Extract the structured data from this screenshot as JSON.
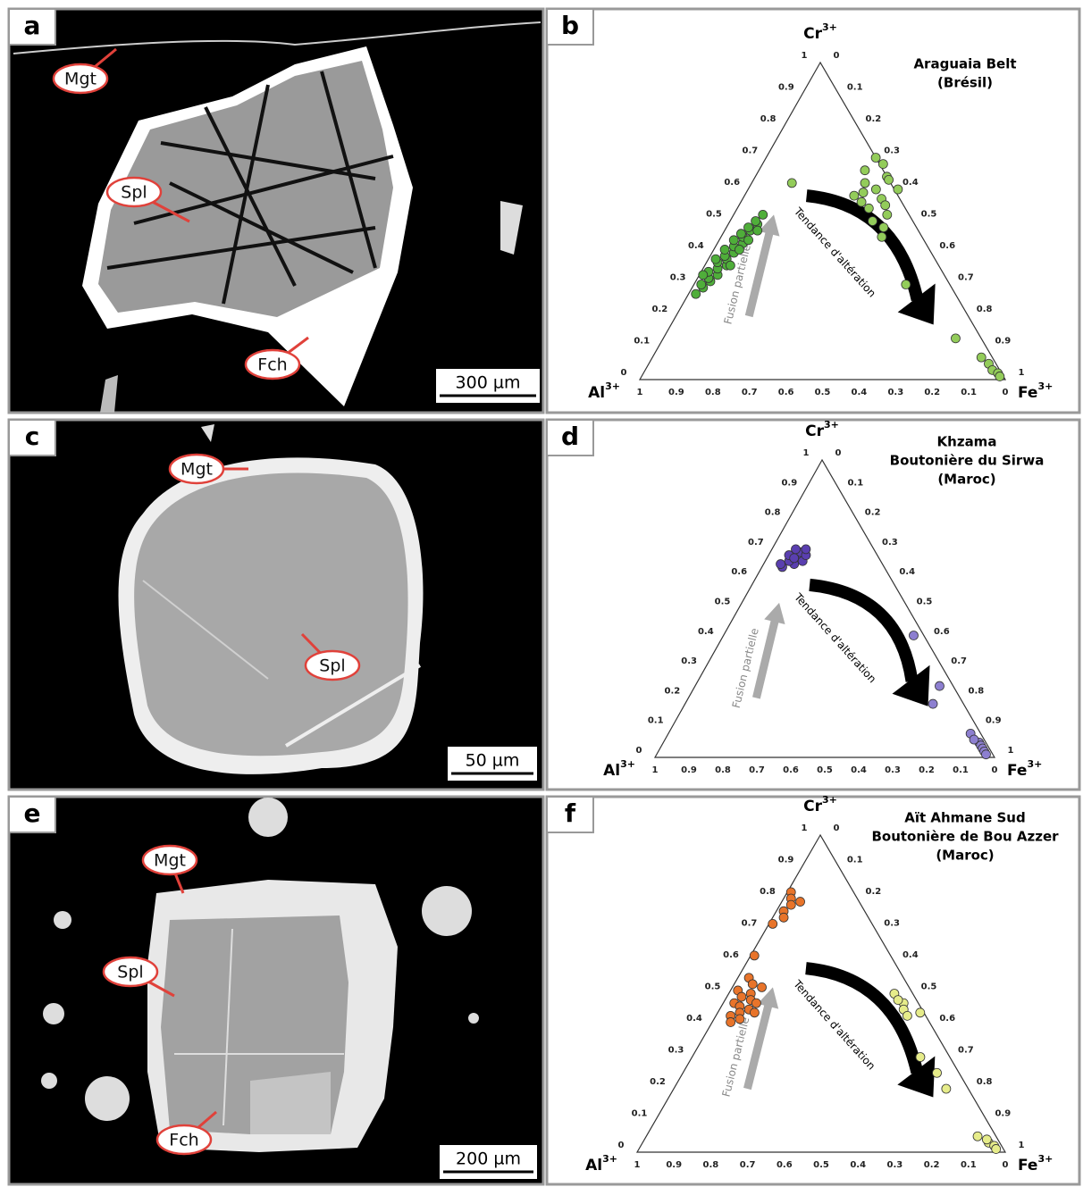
{
  "panels": [
    "a",
    "b",
    "c",
    "d",
    "e",
    "f"
  ],
  "images": [
    {
      "callouts": [
        "Mgt",
        "Spl",
        "Fch"
      ],
      "scale": "300 µm"
    },
    {
      "callouts": [
        "Mgt",
        "Spl"
      ],
      "scale": "50 µm"
    },
    {
      "callouts": [
        "Mgt",
        "Spl",
        "Fch"
      ],
      "scale": "200 µm"
    }
  ],
  "chart_data": [
    {
      "type": "ternary",
      "title_lines": [
        "Araguaia Belt",
        "(Brésil)"
      ],
      "apex": {
        "top": {
          "text": "Cr",
          "sup": "3+"
        },
        "left": {
          "text": "Al",
          "sup": "3+"
        },
        "right": {
          "text": "Fe",
          "sup": "3+"
        }
      },
      "ticks": [
        0,
        0.1,
        0.2,
        0.3,
        0.4,
        0.5,
        0.6,
        0.7,
        0.8,
        0.9,
        1
      ],
      "annotations": [
        "Fusion partielle",
        "Tendance d'altération"
      ],
      "series": [
        {
          "color": "#4fae3a",
          "cr": [
            0.27,
            0.29,
            0.3,
            0.31,
            0.32,
            0.33,
            0.34,
            0.35,
            0.36,
            0.37,
            0.38,
            0.39,
            0.4,
            0.41,
            0.42,
            0.43,
            0.44,
            0.45,
            0.46,
            0.47,
            0.48,
            0.49,
            0.5,
            0.52,
            0.33,
            0.36,
            0.38,
            0.41,
            0.44,
            0.47
          ],
          "fe": [
            0.02,
            0.03,
            0.02,
            0.04,
            0.03,
            0.05,
            0.02,
            0.04,
            0.06,
            0.03,
            0.05,
            0.04,
            0.06,
            0.03,
            0.05,
            0.07,
            0.04,
            0.06,
            0.05,
            0.07,
            0.06,
            0.08,
            0.07,
            0.08,
            0.01,
            0.07,
            0.02,
            0.07,
            0.08,
            0.09
          ]
        },
        {
          "color": "#93cc5a",
          "cr": [
            0.62,
            0.7,
            0.68,
            0.66,
            0.64,
            0.62,
            0.6,
            0.58,
            0.57,
            0.56,
            0.55,
            0.54,
            0.6,
            0.63,
            0.52,
            0.5,
            0.59,
            0.48,
            0.45,
            0.3,
            0.13,
            0.07,
            0.05,
            0.03,
            0.02,
            0.01
          ],
          "fe": [
            0.11,
            0.3,
            0.33,
            0.29,
            0.36,
            0.31,
            0.35,
            0.3,
            0.38,
            0.33,
            0.4,
            0.36,
            0.41,
            0.37,
            0.42,
            0.39,
            0.32,
            0.43,
            0.44,
            0.58,
            0.8,
            0.9,
            0.93,
            0.95,
            0.97,
            0.98
          ]
        }
      ]
    },
    {
      "type": "ternary",
      "title_lines": [
        "Khzama",
        "Boutonière du Sirwa",
        "(Maroc)"
      ],
      "apex": {
        "top": {
          "text": "Cr",
          "sup": "3+"
        },
        "left": {
          "text": "Al",
          "sup": "3+"
        },
        "right": {
          "text": "Fe",
          "sup": "3+"
        }
      },
      "ticks": [
        0,
        0.1,
        0.2,
        0.3,
        0.4,
        0.5,
        0.6,
        0.7,
        0.8,
        0.9,
        1
      ],
      "annotations": [
        "Fusion partielle",
        "Tendance d'altération"
      ],
      "series": [
        {
          "color": "#5a3fb0",
          "cr": [
            0.64,
            0.65,
            0.66,
            0.67,
            0.68,
            0.69,
            0.7,
            0.66,
            0.68,
            0.7,
            0.65,
            0.67
          ],
          "fe": [
            0.06,
            0.09,
            0.07,
            0.1,
            0.06,
            0.09,
            0.07,
            0.11,
            0.11,
            0.1,
            0.05,
            0.08
          ]
        },
        {
          "color": "#8d7fd0",
          "cr": [
            0.41,
            0.18,
            0.24,
            0.08,
            0.05,
            0.04,
            0.03,
            0.02,
            0.06,
            0.01
          ],
          "fe": [
            0.56,
            0.73,
            0.72,
            0.89,
            0.93,
            0.94,
            0.95,
            0.96,
            0.91,
            0.97
          ]
        }
      ]
    },
    {
      "type": "ternary",
      "title_lines": [
        "Aït Ahmane Sud",
        "Boutonière de Bou Azzer",
        "(Maroc)"
      ],
      "apex": {
        "top": {
          "text": "Cr",
          "sup": "3+"
        },
        "left": {
          "text": "Al",
          "sup": "3+"
        },
        "right": {
          "text": "Fe",
          "sup": "3+"
        }
      },
      "ticks": [
        0,
        0.1,
        0.2,
        0.3,
        0.4,
        0.5,
        0.6,
        0.7,
        0.8,
        0.9,
        1
      ],
      "annotations": [
        "Fusion partielle",
        "Tendance d'altération"
      ],
      "series": [
        {
          "color": "#e8742a",
          "cr": [
            0.82,
            0.8,
            0.78,
            0.76,
            0.72,
            0.62,
            0.55,
            0.53,
            0.51,
            0.5,
            0.49,
            0.48,
            0.47,
            0.46,
            0.45,
            0.44,
            0.43,
            0.42,
            0.41,
            0.52,
            0.47,
            0.44,
            0.79,
            0.74
          ],
          "fe": [
            0.01,
            0.02,
            0.03,
            0.02,
            0.01,
            0.01,
            0.03,
            0.05,
            0.02,
            0.06,
            0.04,
            0.07,
            0.03,
            0.05,
            0.08,
            0.06,
            0.04,
            0.07,
            0.05,
            0.08,
            0.09,
            0.1,
            0.05,
            0.03
          ]
        },
        {
          "color": "#e6ec8a",
          "cr": [
            0.5,
            0.47,
            0.45,
            0.43,
            0.48,
            0.44,
            0.3,
            0.25,
            0.2,
            0.05,
            0.03,
            0.02,
            0.01,
            0.04
          ],
          "fe": [
            0.45,
            0.49,
            0.5,
            0.52,
            0.47,
            0.55,
            0.62,
            0.69,
            0.74,
            0.9,
            0.94,
            0.96,
            0.97,
            0.93
          ]
        }
      ]
    }
  ]
}
